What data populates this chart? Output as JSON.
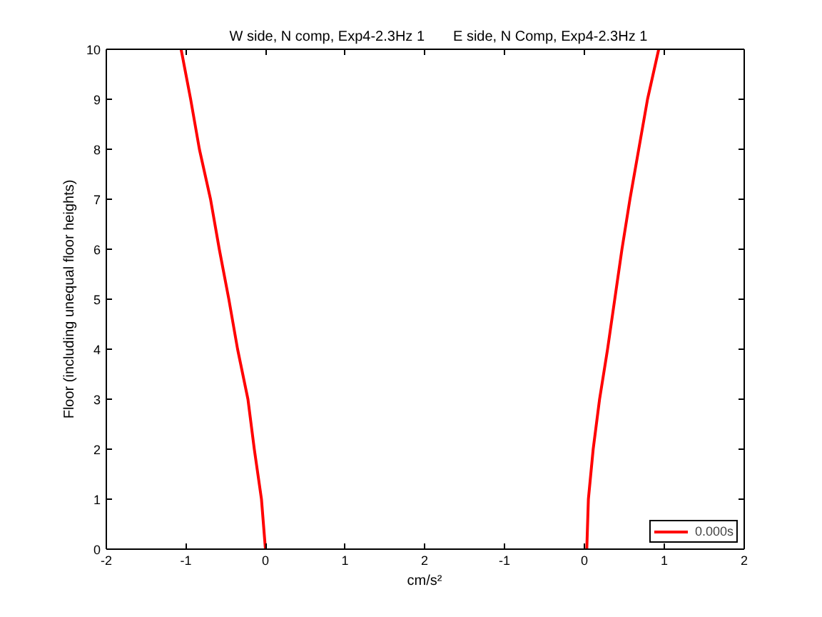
{
  "chart_data": [
    {
      "type": "line",
      "title": "W side, N comp, Exp4-2.3Hz 1",
      "xlabel": "cm/s²",
      "ylabel": "Floor (including unequal floor heights)",
      "xlim": [
        -2,
        2
      ],
      "ylim": [
        0,
        10
      ],
      "xticks": [
        -2,
        -1,
        0,
        1,
        2
      ],
      "yticks": [
        0,
        1,
        2,
        3,
        4,
        5,
        6,
        7,
        8,
        9,
        10
      ],
      "series": [
        {
          "color": "#ff0000",
          "x": [
            0.0,
            -0.05,
            -0.14,
            -0.22,
            -0.35,
            -0.46,
            -0.58,
            -0.69,
            -0.83,
            -0.94,
            -1.06
          ],
          "values": [
            0,
            1,
            2,
            3,
            4,
            5,
            6,
            7,
            8,
            9,
            10
          ]
        }
      ],
      "line_style": "solid"
    },
    {
      "type": "line",
      "title": "E side, N Comp, Exp4-2.3Hz 1",
      "xlim": [
        -2,
        2
      ],
      "ylim": [
        0,
        10
      ],
      "xticks": [
        -1,
        0,
        1,
        2
      ],
      "yticks": [
        0,
        1,
        2,
        3,
        4,
        5,
        6,
        7,
        8,
        9,
        10
      ],
      "tick_labels": "x",
      "series": [
        {
          "name": "0.000s",
          "color": "#ff0000",
          "x": [
            0.03,
            0.05,
            0.11,
            0.19,
            0.29,
            0.38,
            0.47,
            0.57,
            0.68,
            0.79,
            0.93
          ],
          "values": [
            0,
            1,
            2,
            3,
            4,
            5,
            6,
            7,
            8,
            9,
            10
          ]
        }
      ],
      "legend": "bottom right",
      "line_style": "solid"
    }
  ]
}
